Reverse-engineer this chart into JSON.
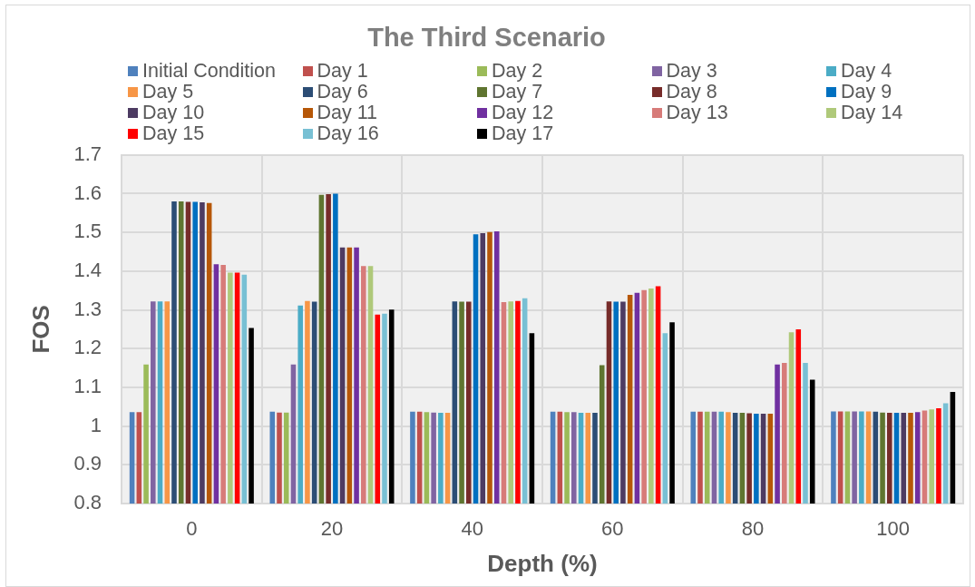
{
  "chart_data": {
    "type": "bar",
    "title": "The Third Scenario",
    "xlabel": "Depth (%)",
    "ylabel": "FOS",
    "categories": [
      "0",
      "20",
      "40",
      "60",
      "80",
      "100"
    ],
    "series": [
      {
        "name": "Initial Condition",
        "color": "#4f81bd",
        "values": [
          1.036,
          1.037,
          1.037,
          1.037,
          1.037,
          1.038
        ]
      },
      {
        "name": "Day 1",
        "color": "#c0504d",
        "values": [
          1.036,
          1.035,
          1.037,
          1.037,
          1.037,
          1.038
        ]
      },
      {
        "name": "Day 2",
        "color": "#9bbb59",
        "values": [
          1.159,
          1.035,
          1.036,
          1.036,
          1.037,
          1.038
        ]
      },
      {
        "name": "Day 3",
        "color": "#8064a2",
        "values": [
          1.322,
          1.159,
          1.035,
          1.036,
          1.037,
          1.038
        ]
      },
      {
        "name": "Day 4",
        "color": "#4bacc6",
        "values": [
          1.322,
          1.311,
          1.034,
          1.034,
          1.037,
          1.038
        ]
      },
      {
        "name": "Day 5",
        "color": "#f79646",
        "values": [
          1.322,
          1.323,
          1.034,
          1.034,
          1.036,
          1.038
        ]
      },
      {
        "name": "Day 6",
        "color": "#2c4d75",
        "values": [
          1.58,
          1.321,
          1.322,
          1.034,
          1.034,
          1.037
        ]
      },
      {
        "name": "Day 7",
        "color": "#5f7530",
        "values": [
          1.58,
          1.597,
          1.321,
          1.157,
          1.034,
          1.035
        ]
      },
      {
        "name": "Day 8",
        "color": "#772c2a",
        "values": [
          1.579,
          1.599,
          1.321,
          1.322,
          1.033,
          1.034
        ]
      },
      {
        "name": "Day 9",
        "color": "#0070c0",
        "values": [
          1.579,
          1.6,
          1.495,
          1.321,
          1.032,
          1.034
        ]
      },
      {
        "name": "Day 10",
        "color": "#4d3b62",
        "values": [
          1.578,
          1.461,
          1.498,
          1.321,
          1.032,
          1.034
        ]
      },
      {
        "name": "Day 11",
        "color": "#b65708",
        "values": [
          1.576,
          1.461,
          1.501,
          1.339,
          1.032,
          1.034
        ]
      },
      {
        "name": "Day 12",
        "color": "#7030a0",
        "values": [
          1.418,
          1.461,
          1.503,
          1.344,
          1.159,
          1.036
        ]
      },
      {
        "name": "Day 13",
        "color": "#d77b79",
        "values": [
          1.416,
          1.413,
          1.32,
          1.351,
          1.163,
          1.04
        ]
      },
      {
        "name": "Day 14",
        "color": "#afc97a",
        "values": [
          1.396,
          1.413,
          1.322,
          1.355,
          1.242,
          1.043
        ]
      },
      {
        "name": "Day 15",
        "color": "#ff0000",
        "values": [
          1.396,
          1.288,
          1.323,
          1.361,
          1.25,
          1.046
        ]
      },
      {
        "name": "Day 16",
        "color": "#78c0d4",
        "values": [
          1.391,
          1.29,
          1.33,
          1.24,
          1.163,
          1.059
        ]
      },
      {
        "name": "Day 17",
        "color": "#000000",
        "values": [
          1.253,
          1.301,
          1.24,
          1.268,
          1.12,
          1.088
        ]
      }
    ],
    "ylim": [
      0.8,
      1.7
    ],
    "yticks": [
      0.8,
      0.9,
      1,
      1.1,
      1.2,
      1.3,
      1.4,
      1.5,
      1.6,
      1.7
    ],
    "grid": true,
    "legend": "top"
  }
}
